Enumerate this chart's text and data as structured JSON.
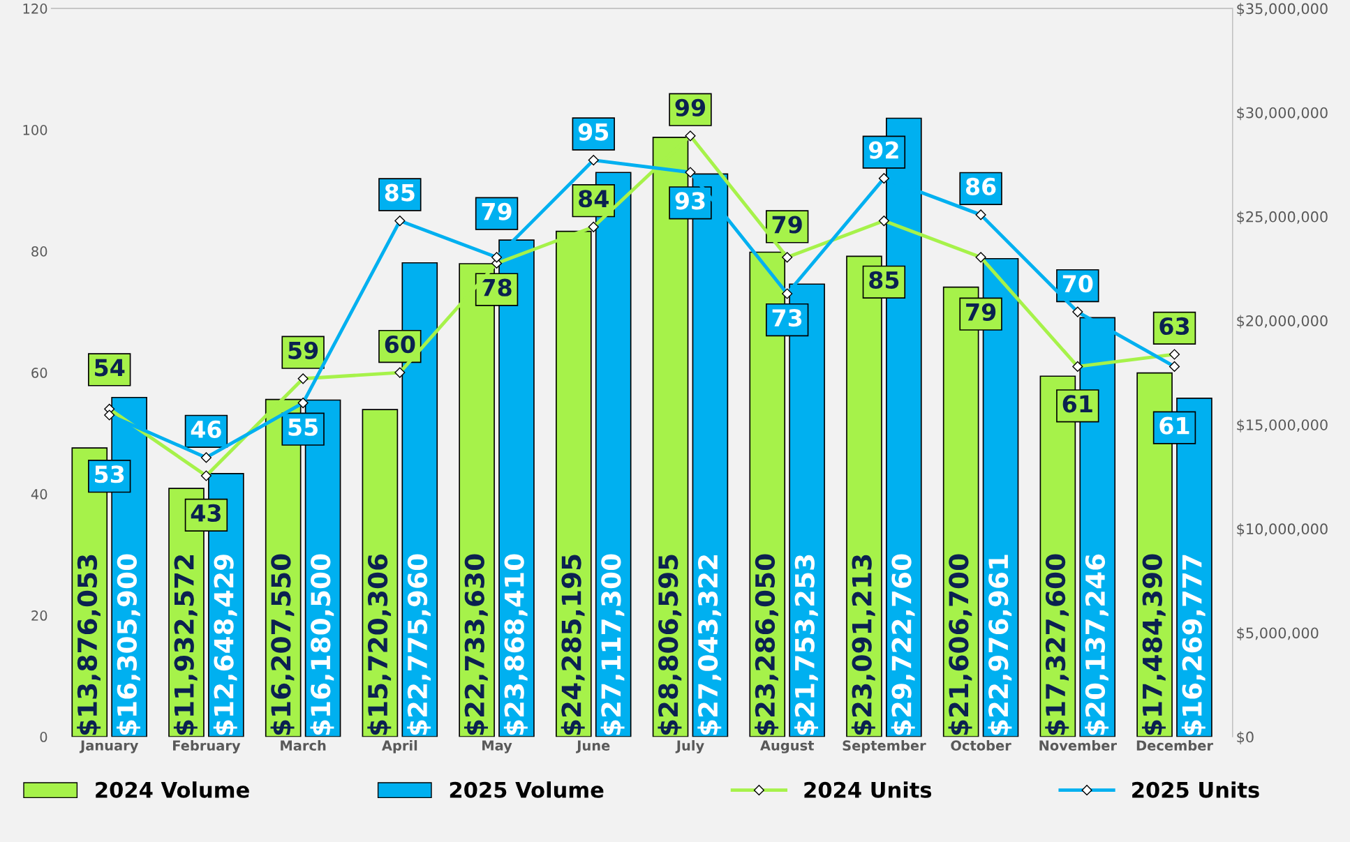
{
  "chart_data": {
    "type": "bar",
    "categories": [
      "January",
      "February",
      "March",
      "April",
      "May",
      "June",
      "July",
      "August",
      "September",
      "October",
      "November",
      "December"
    ],
    "series": [
      {
        "name": "2024 Volume",
        "axis": "y2",
        "color": "#a6f24a",
        "values": [
          13876053,
          11932572,
          16207550,
          15720306,
          22733630,
          24285195,
          28806595,
          23286050,
          23091213,
          21606700,
          17327600,
          17484390
        ],
        "value_labels": [
          "$13,876,053",
          "$11,932,572",
          "$16,207,550",
          "$15,720,306",
          "$22,733,630",
          "$24,285,195",
          "$28,806,595",
          "$23,286,050",
          "$23,091,213",
          "$21,606,700",
          "$17,327,600",
          "$17,484,390"
        ]
      },
      {
        "name": "2025 Volume",
        "axis": "y2",
        "color": "#00b0f0",
        "values": [
          16305900,
          12648429,
          16180500,
          22775960,
          23868410,
          27117300,
          27043322,
          21753253,
          29722760,
          22976961,
          20137246,
          16269777
        ],
        "value_labels": [
          "$16,305,900",
          "$12,648,429",
          "$16,180,500",
          "$22,775,960",
          "$23,868,410",
          "$27,117,300",
          "$27,043,322",
          "$21,753,253",
          "$29,722,760",
          "$22,976,961",
          "$20,137,246",
          "$16,269,777"
        ]
      },
      {
        "name": "2024 Units",
        "type": "line",
        "color": "#a6f24a",
        "values": [
          54,
          43,
          59,
          60,
          78,
          84,
          99,
          79,
          85,
          79,
          61,
          63
        ],
        "value_labels": [
          "54",
          "43",
          "59",
          "60",
          "78",
          "84",
          "99",
          "79",
          "85",
          "79",
          "61",
          "63"
        ]
      },
      {
        "name": "2025 Units",
        "type": "line",
        "color": "#00b0f0",
        "values": [
          53,
          46,
          55,
          85,
          79,
          95,
          93,
          73,
          92,
          86,
          70,
          61
        ],
        "value_labels": [
          "53",
          "46",
          "55",
          "85",
          "79",
          "95",
          "93",
          "73",
          "92",
          "86",
          "70",
          "61"
        ]
      }
    ],
    "ylim": [
      0,
      120
    ],
    "yticks": [
      0,
      20,
      40,
      60,
      80,
      100,
      120
    ],
    "y2lim": [
      0,
      35000000
    ],
    "y2ticks": [
      {
        "value": 0,
        "label": "$0"
      },
      {
        "value": 5000000,
        "label": "$5,000,000"
      },
      {
        "value": 10000000,
        "label": "$10,000,000"
      },
      {
        "value": 15000000,
        "label": "$15,000,000"
      },
      {
        "value": 20000000,
        "label": "$20,000,000"
      },
      {
        "value": 25000000,
        "label": "$25,000,000"
      },
      {
        "value": 30000000,
        "label": "$30,000,000"
      },
      {
        "value": 35000000,
        "label": "$35,000,000"
      }
    ],
    "marker": "diamond",
    "line_style": "solid",
    "grid": false,
    "legend": "bottom"
  }
}
